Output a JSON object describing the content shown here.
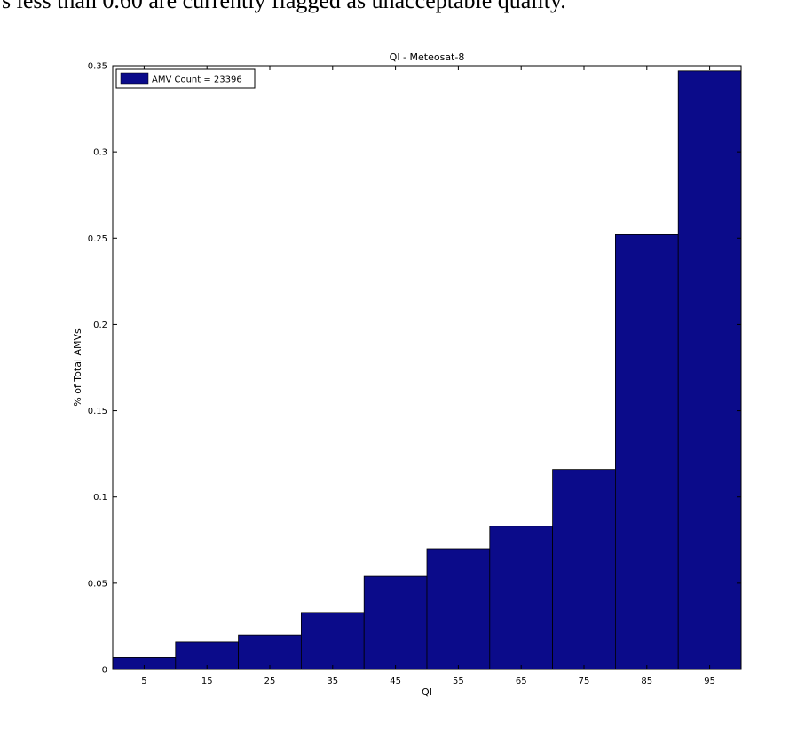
{
  "page": {
    "caption": "s less than 0.60 are currently flagged as unacceptable quality."
  },
  "chart_data": {
    "type": "bar",
    "title": "QI - Meteosat-8",
    "xlabel": "QI",
    "ylabel": "% of Total AMVs",
    "categories": [
      "5",
      "15",
      "25",
      "35",
      "45",
      "55",
      "65",
      "75",
      "85",
      "95"
    ],
    "series": [
      {
        "name": "AMV Count = 23396",
        "values": [
          0.007,
          0.016,
          0.02,
          0.033,
          0.054,
          0.07,
          0.083,
          0.116,
          0.252,
          0.347
        ]
      }
    ],
    "ylim": [
      0,
      0.35
    ],
    "yticks": [
      "0",
      "0.05",
      "0.1",
      "0.15",
      "0.2",
      "0.25",
      "0.3",
      "0.35"
    ],
    "ytick_values": [
      0,
      0.05,
      0.1,
      0.15,
      0.2,
      0.25,
      0.3,
      0.35
    ],
    "grid": false,
    "legend_position": "top-left",
    "bar_color": "#0b0b8a"
  }
}
